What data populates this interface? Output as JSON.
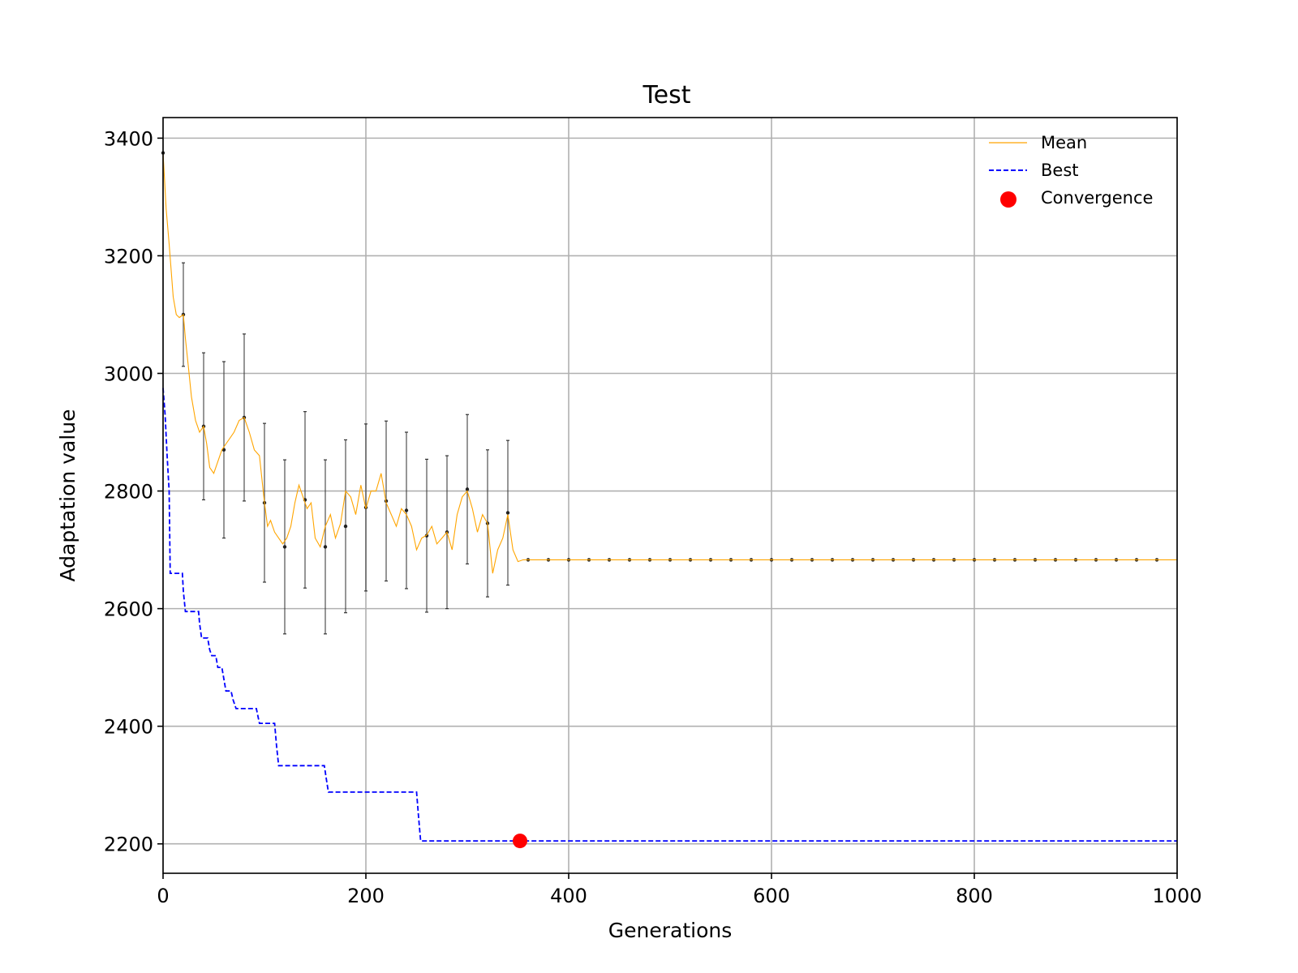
{
  "chart_data": {
    "type": "line",
    "title": "Test",
    "xlabel": "Generations",
    "ylabel": "Adaptation value",
    "xlim": [
      0,
      1000
    ],
    "ylim": [
      2150,
      3435
    ],
    "xticks": [
      0,
      200,
      400,
      600,
      800,
      1000
    ],
    "yticks": [
      2200,
      2400,
      2600,
      2800,
      3000,
      3200,
      3400
    ],
    "xtick_labels": [
      "0",
      "200",
      "400",
      "600",
      "800",
      "1000"
    ],
    "ytick_labels": [
      "2200",
      "2400",
      "2600",
      "2800",
      "3000",
      "3200",
      "3400"
    ],
    "grid": true,
    "legend_position": "top-right",
    "colors": {
      "mean": "#ffa500",
      "best": "#0000ff",
      "convergence": "#ff0000",
      "errorbar": "#333333"
    },
    "series": [
      {
        "name": "Mean",
        "style": "solid",
        "x": [
          0,
          3,
          6,
          10,
          13,
          16,
          20,
          22,
          25,
          28,
          32,
          36,
          40,
          43,
          46,
          50,
          54,
          58,
          62,
          66,
          70,
          75,
          80,
          85,
          90,
          95,
          100,
          103,
          106,
          110,
          114,
          118,
          122,
          126,
          130,
          134,
          138,
          142,
          146,
          150,
          155,
          160,
          165,
          170,
          175,
          180,
          185,
          190,
          195,
          200,
          205,
          210,
          215,
          220,
          225,
          230,
          235,
          240,
          245,
          250,
          255,
          260,
          265,
          270,
          275,
          280,
          285,
          290,
          295,
          300,
          305,
          310,
          315,
          320,
          325,
          330,
          335,
          340,
          345,
          350,
          355,
          360,
          380,
          400,
          420,
          440,
          460,
          480,
          500,
          520,
          540,
          560,
          580,
          600,
          620,
          640,
          660,
          680,
          700,
          720,
          740,
          760,
          780,
          800,
          820,
          840,
          860,
          880,
          900,
          920,
          940,
          960,
          980,
          1000
        ],
        "y": [
          3375,
          3280,
          3220,
          3130,
          3100,
          3095,
          3100,
          3060,
          3010,
          2960,
          2920,
          2900,
          2910,
          2880,
          2840,
          2830,
          2850,
          2870,
          2880,
          2890,
          2900,
          2920,
          2925,
          2900,
          2870,
          2860,
          2780,
          2740,
          2750,
          2730,
          2720,
          2710,
          2720,
          2740,
          2780,
          2810,
          2790,
          2770,
          2780,
          2720,
          2705,
          2740,
          2760,
          2720,
          2745,
          2800,
          2790,
          2760,
          2810,
          2770,
          2800,
          2800,
          2830,
          2780,
          2760,
          2740,
          2770,
          2760,
          2740,
          2700,
          2720,
          2725,
          2740,
          2710,
          2720,
          2730,
          2700,
          2760,
          2790,
          2800,
          2770,
          2730,
          2760,
          2745,
          2660,
          2700,
          2720,
          2760,
          2700,
          2680,
          2683,
          2683,
          2683,
          2683,
          2683,
          2683,
          2683,
          2683,
          2683,
          2683,
          2683,
          2683,
          2683,
          2683,
          2683,
          2683,
          2683,
          2683,
          2683,
          2683,
          2683,
          2683,
          2683,
          2683,
          2683,
          2683,
          2683,
          2683,
          2683,
          2683,
          2683,
          2683,
          2683,
          2683
        ]
      },
      {
        "name": "Best",
        "style": "dashed",
        "step_points": [
          [
            0,
            2975
          ],
          [
            2,
            2930
          ],
          [
            4,
            2860
          ],
          [
            6,
            2800
          ],
          [
            7,
            2660
          ],
          [
            19,
            2660
          ],
          [
            20,
            2630
          ],
          [
            22,
            2595
          ],
          [
            35,
            2595
          ],
          [
            36,
            2575
          ],
          [
            38,
            2550
          ],
          [
            44,
            2550
          ],
          [
            46,
            2530
          ],
          [
            48,
            2520
          ],
          [
            52,
            2520
          ],
          [
            54,
            2500
          ],
          [
            58,
            2500
          ],
          [
            60,
            2480
          ],
          [
            62,
            2460
          ],
          [
            67,
            2460
          ],
          [
            69,
            2445
          ],
          [
            72,
            2430
          ],
          [
            92,
            2430
          ],
          [
            95,
            2405
          ],
          [
            110,
            2405
          ],
          [
            112,
            2365
          ],
          [
            114,
            2333
          ],
          [
            159,
            2333
          ],
          [
            161,
            2310
          ],
          [
            163,
            2288
          ],
          [
            250,
            2288
          ],
          [
            252,
            2245
          ],
          [
            254,
            2205
          ],
          [
            1000,
            2205
          ]
        ]
      }
    ],
    "errorbars": {
      "x": [
        0,
        20,
        40,
        60,
        80,
        100,
        120,
        140,
        160,
        180,
        200,
        220,
        240,
        260,
        280,
        300,
        320,
        340,
        360,
        380,
        400,
        420,
        440,
        460,
        480,
        500,
        520,
        540,
        560,
        580,
        600,
        620,
        640,
        660,
        680,
        700,
        720,
        740,
        760,
        780,
        800,
        820,
        840,
        860,
        880,
        900,
        920,
        940,
        960,
        980
      ],
      "y": [
        3375,
        3100,
        2910,
        2870,
        2925,
        2780,
        2705,
        2785,
        2705,
        2740,
        2772,
        2783,
        2767,
        2724,
        2730,
        2803,
        2745,
        2763,
        2683,
        2683,
        2683,
        2683,
        2683,
        2683,
        2683,
        2683,
        2683,
        2683,
        2683,
        2683,
        2683,
        2683,
        2683,
        2683,
        2683,
        2683,
        2683,
        2683,
        2683,
        2683,
        2683,
        2683,
        2683,
        2683,
        2683,
        2683,
        2683,
        2683,
        2683,
        2683
      ],
      "err": [
        0,
        88,
        125,
        150,
        142,
        135,
        148,
        150,
        148,
        147,
        142,
        136,
        133,
        130,
        130,
        127,
        125,
        123,
        0,
        0,
        0,
        0,
        0,
        0,
        0,
        0,
        0,
        0,
        0,
        0,
        0,
        0,
        0,
        0,
        0,
        0,
        0,
        0,
        0,
        0,
        0,
        0,
        0,
        0,
        0,
        0,
        0,
        0,
        0,
        0
      ]
    },
    "convergence": {
      "name": "Convergence",
      "x": 352,
      "y": 2205
    }
  }
}
